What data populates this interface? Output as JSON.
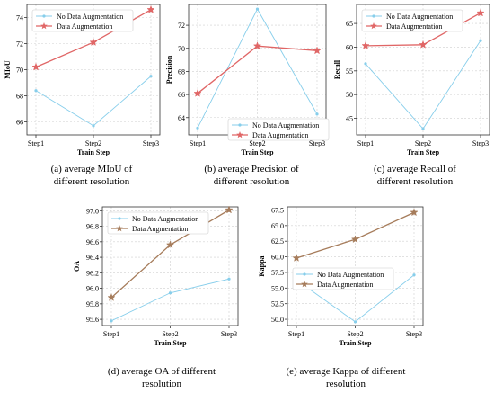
{
  "colors": {
    "no_aug": "#87ceeb",
    "aug_red": "#e06666",
    "aug_brown": "#a67c5b",
    "grid": "#d0d0d0",
    "axis": "#333333"
  },
  "captions": {
    "a": [
      "(a) average MIoU of",
      "different resolution"
    ],
    "b": [
      "(b) average Precision of",
      "different resolution"
    ],
    "c": [
      "(c)  average Recall of",
      "different resolution"
    ],
    "d": [
      "(d) average OA of different",
      "resolution"
    ],
    "e": [
      "(e) average Kappa of different",
      "resolution"
    ]
  },
  "chart_data": [
    {
      "id": "a",
      "type": "line",
      "title": "",
      "xlabel": "Train Step",
      "ylabel": "MIoU",
      "categories": [
        "Step1",
        "Step2",
        "Step3"
      ],
      "ylim": [
        65.0,
        75.0
      ],
      "yticks": [
        66,
        68,
        70,
        72,
        74
      ],
      "ytick_labels": [
        "66",
        "68",
        "70",
        "72",
        "74"
      ],
      "legend": "top-left",
      "grid": true,
      "series": [
        {
          "name": "No Data Augmentation",
          "values": [
            68.4,
            65.7,
            69.5
          ],
          "color_key": "no_aug",
          "marker": "dot"
        },
        {
          "name": "Data Augmentation",
          "values": [
            70.2,
            72.1,
            74.6
          ],
          "color_key": "aug_red",
          "marker": "star"
        }
      ]
    },
    {
      "id": "b",
      "type": "line",
      "title": "",
      "xlabel": "Train Step",
      "ylabel": "Precision",
      "categories": [
        "Step1",
        "Step2",
        "Step3"
      ],
      "ylim": [
        62.5,
        73.8
      ],
      "yticks": [
        64,
        66,
        68,
        70,
        72
      ],
      "ytick_labels": [
        "64",
        "66",
        "68",
        "70",
        "72"
      ],
      "legend": "bottom-right",
      "grid": true,
      "series": [
        {
          "name": "No Data Augmentation",
          "values": [
            63.1,
            73.4,
            64.3
          ],
          "color_key": "no_aug",
          "marker": "dot"
        },
        {
          "name": "Data Augmentation",
          "values": [
            66.1,
            70.2,
            69.8
          ],
          "color_key": "aug_red",
          "marker": "star"
        }
      ]
    },
    {
      "id": "c",
      "type": "line",
      "title": "",
      "xlabel": "Train Step",
      "ylabel": "Recall",
      "categories": [
        "Step1",
        "Step2",
        "Step3"
      ],
      "ylim": [
        41.5,
        69.0
      ],
      "yticks": [
        45,
        50,
        55,
        60,
        65
      ],
      "ytick_labels": [
        "45",
        "50",
        "55",
        "60",
        "65"
      ],
      "legend": "top-left",
      "grid": true,
      "series": [
        {
          "name": "No Data Augmentation",
          "values": [
            56.5,
            42.8,
            61.4
          ],
          "color_key": "no_aug",
          "marker": "dot"
        },
        {
          "name": "Data Augmentation",
          "values": [
            60.3,
            60.5,
            67.2
          ],
          "color_key": "aug_red",
          "marker": "star"
        }
      ]
    },
    {
      "id": "d",
      "type": "line",
      "title": "",
      "xlabel": "Train Step",
      "ylabel": "OA",
      "categories": [
        "Step1",
        "Step2",
        "Step3"
      ],
      "ylim": [
        95.52,
        97.05
      ],
      "yticks": [
        95.6,
        95.8,
        96.0,
        96.2,
        96.4,
        96.6,
        96.8,
        97.0
      ],
      "ytick_labels": [
        "95.6",
        "95.8",
        "96.0",
        "96.2",
        "96.4",
        "96.6",
        "96.8",
        "97.0"
      ],
      "legend": "top-left",
      "grid": true,
      "series": [
        {
          "name": "No Data Augmentation",
          "values": [
            95.58,
            95.94,
            96.12
          ],
          "color_key": "no_aug",
          "marker": "dot"
        },
        {
          "name": "Data Augmentation",
          "values": [
            95.88,
            96.56,
            97.01
          ],
          "color_key": "aug_brown",
          "marker": "star"
        }
      ]
    },
    {
      "id": "e",
      "type": "line",
      "title": "",
      "xlabel": "Train Step",
      "ylabel": "Kappa",
      "categories": [
        "Step1",
        "Step2",
        "Step3"
      ],
      "ylim": [
        49.0,
        68.0
      ],
      "yticks": [
        50.0,
        52.5,
        55.0,
        57.5,
        60.0,
        62.5,
        65.0,
        67.5
      ],
      "ytick_labels": [
        "50.0",
        "52.5",
        "55.0",
        "57.5",
        "60.0",
        "62.5",
        "65.0",
        "67.5"
      ],
      "legend": "center-right",
      "grid": true,
      "series": [
        {
          "name": "No Data Augmentation",
          "values": [
            56.3,
            49.6,
            57.1
          ],
          "color_key": "no_aug",
          "marker": "dot"
        },
        {
          "name": "Data Augmentation",
          "values": [
            59.8,
            62.8,
            67.1
          ],
          "color_key": "aug_brown",
          "marker": "star"
        }
      ]
    }
  ]
}
